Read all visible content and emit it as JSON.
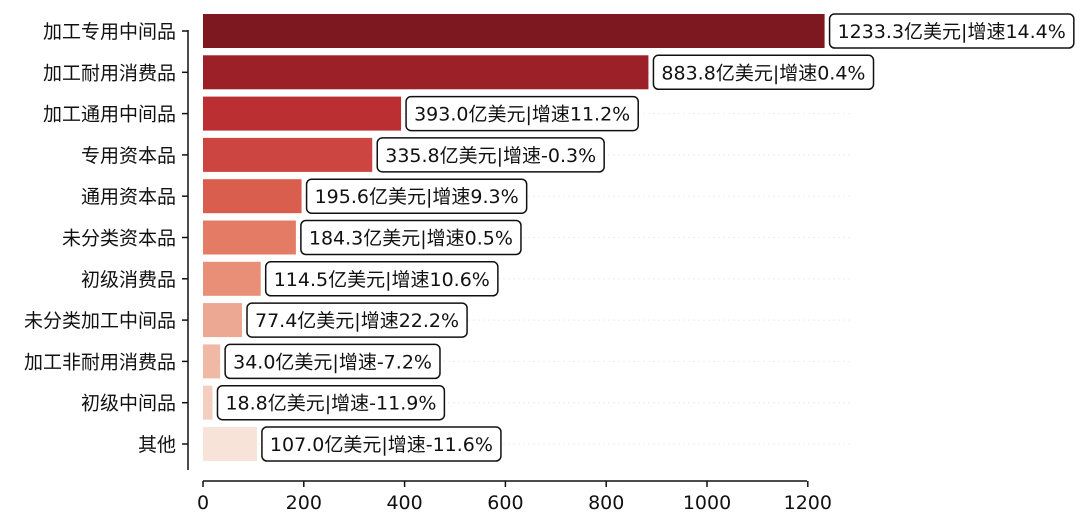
{
  "chart_data": {
    "type": "bar",
    "orientation": "horizontal",
    "title": "",
    "xlabel": "",
    "ylabel": "",
    "xlim": [
      0,
      1280
    ],
    "xticks": [
      0,
      200,
      400,
      600,
      800,
      1000,
      1200
    ],
    "grid": false,
    "categories": [
      "加工专用中间品",
      "加工耐用消费品",
      "加工通用中间品",
      "专用资本品",
      "通用资本品",
      "未分类资本品",
      "初级消费品",
      "未分类加工中间品",
      "加工非耐用消费品",
      "初级中间品",
      "其他"
    ],
    "values": [
      1233.3,
      883.8,
      393.0,
      335.8,
      195.6,
      184.3,
      114.5,
      77.4,
      34.0,
      18.8,
      107.0
    ],
    "growth_pct": [
      14.4,
      0.4,
      11.2,
      -0.3,
      9.3,
      0.5,
      10.6,
      22.2,
      -7.2,
      -11.9,
      -11.6
    ],
    "data_labels": [
      "1233.3亿美元|增速14.4%",
      "883.8亿美元|增速0.4%",
      "393.0亿美元|增速11.2%",
      "335.8亿美元|增速-0.3%",
      "195.6亿美元|增速9.3%",
      "184.3亿美元|增速0.5%",
      "114.5亿美元|增速10.6%",
      "77.4亿美元|增速22.2%",
      "34.0亿美元|增速-7.2%",
      "18.8亿美元|增速-11.9%",
      "107.0亿美元|增速-11.6%"
    ],
    "colors": [
      "#7d1720",
      "#9b2027",
      "#bb2f32",
      "#cd4540",
      "#da5e4e",
      "#e47b64",
      "#e98f77",
      "#eda894",
      "#f0b9a6",
      "#f4cfc0",
      "#f7e3d8"
    ]
  }
}
